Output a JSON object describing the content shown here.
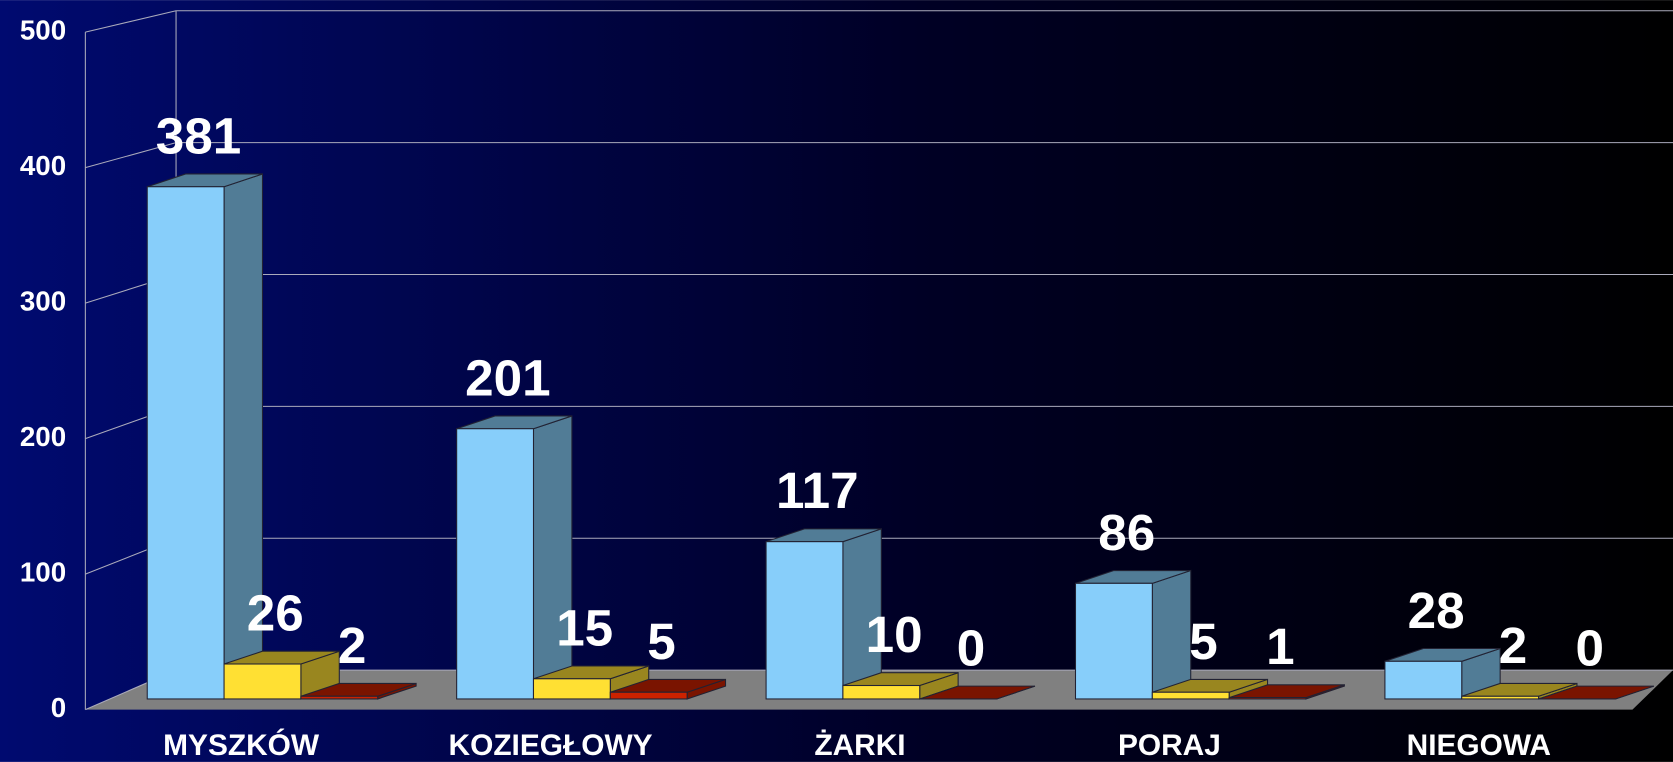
{
  "chart_data": {
    "type": "bar3d",
    "categories": [
      "MYSZKÓW",
      "KOZIEGŁOWY",
      "ŻARKI",
      "PORAJ",
      "NIEGOWA"
    ],
    "series": [
      {
        "color": "#87cefa",
        "values": [
          381,
          201,
          117,
          86,
          28
        ]
      },
      {
        "color": "#ffe033",
        "values": [
          26,
          15,
          10,
          5,
          2
        ]
      },
      {
        "color": "#cc2200",
        "values": [
          2,
          5,
          0,
          1,
          0
        ]
      }
    ],
    "ylim": [
      0,
      500
    ],
    "yticks": [
      0,
      100,
      200,
      300,
      400,
      500
    ],
    "grid": true
  }
}
